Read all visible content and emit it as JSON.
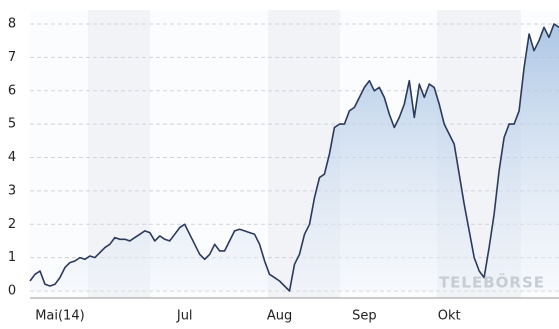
{
  "chart_data": {
    "type": "area",
    "watermark": "TELEBÖRSE",
    "categories": [
      null,
      null,
      null,
      null,
      null,
      null,
      "Mai(14)",
      null,
      null,
      null,
      null,
      null,
      null,
      null,
      null,
      null,
      null,
      null,
      null,
      null,
      null,
      null,
      null,
      null,
      null,
      null,
      null,
      null,
      null,
      null,
      null,
      "Jul",
      null,
      null,
      null,
      null,
      null,
      null,
      null,
      null,
      null,
      null,
      null,
      null,
      null,
      null,
      null,
      null,
      null,
      null,
      "Aug",
      null,
      null,
      null,
      null,
      null,
      null,
      null,
      null,
      null,
      null,
      null,
      null,
      null,
      null,
      null,
      null,
      "Sep",
      null,
      null,
      null,
      null,
      null,
      null,
      null,
      null,
      null,
      null,
      null,
      null,
      null,
      null,
      null,
      null,
      "Okt",
      null,
      null,
      null,
      null,
      null,
      null,
      null,
      null,
      null,
      null,
      null,
      null,
      null,
      null,
      null,
      null,
      null,
      null,
      null,
      null,
      null,
      null
    ],
    "values": [
      0.3,
      0.5,
      0.6,
      0.2,
      0.15,
      0.2,
      0.4,
      0.7,
      0.85,
      0.9,
      1.0,
      0.95,
      1.05,
      1.0,
      1.15,
      1.3,
      1.4,
      1.6,
      1.55,
      1.55,
      1.5,
      1.6,
      1.7,
      1.8,
      1.75,
      1.5,
      1.65,
      1.55,
      1.5,
      1.7,
      1.9,
      2.0,
      1.7,
      1.4,
      1.1,
      0.95,
      1.1,
      1.4,
      1.2,
      1.2,
      1.5,
      1.8,
      1.85,
      1.8,
      1.75,
      1.7,
      1.4,
      0.9,
      0.5,
      0.4,
      0.3,
      0.15,
      0.0,
      0.8,
      1.1,
      1.7,
      2.0,
      2.8,
      3.4,
      3.5,
      4.1,
      4.9,
      5.0,
      5.0,
      5.4,
      5.5,
      5.8,
      6.1,
      6.3,
      6.0,
      6.1,
      5.8,
      5.3,
      4.9,
      5.2,
      5.6,
      6.3,
      5.2,
      6.2,
      5.8,
      6.2,
      6.1,
      5.6,
      5.0,
      4.7,
      4.4,
      3.5,
      2.6,
      1.8,
      1.0,
      0.6,
      0.4,
      1.3,
      2.3,
      3.6,
      4.6,
      5.0,
      5.0,
      5.4,
      6.7,
      7.7,
      7.2,
      7.5,
      7.9,
      7.6,
      8.0,
      7.9
    ],
    "color": "#2b3a5c",
    "ylim": [
      0,
      8
    ],
    "yticks": [
      0,
      1,
      2,
      3,
      4,
      5,
      6,
      7,
      8
    ],
    "grid": true
  }
}
